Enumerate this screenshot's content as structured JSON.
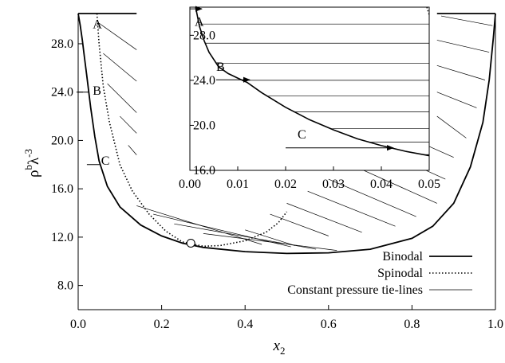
{
  "chart_data": [
    {
      "type": "line",
      "xlabel": "x",
      "xlabel_sub": "2",
      "ylabel_base": "ρ",
      "ylabel_sup1": "b",
      "ylabel_mid": "λ",
      "ylabel_sup2": "-3",
      "xlim": [
        0.0,
        1.0
      ],
      "ylim": [
        6.0,
        30.5
      ],
      "xticks": [
        "0.0",
        "0.2",
        "0.4",
        "0.6",
        "0.8",
        "1.0"
      ],
      "yticks": [
        "8.0",
        "12.0",
        "16.0",
        "20.0",
        "24.0",
        "28.0"
      ],
      "legend_position": "bottom-right",
      "series": [
        {
          "name": "Binodal",
          "style": "solid",
          "left_branch": [
            [
              0.0,
              30.5
            ],
            [
              0.005,
              29.5
            ],
            [
              0.01,
              28.3
            ],
            [
              0.015,
              26.9
            ],
            [
              0.02,
              25.5
            ],
            [
              0.03,
              22.7
            ],
            [
              0.04,
              20.3
            ],
            [
              0.05,
              18.3
            ],
            [
              0.07,
              16.2
            ],
            [
              0.1,
              14.5
            ],
            [
              0.15,
              13.0
            ],
            [
              0.2,
              12.1
            ],
            [
              0.25,
              11.5
            ],
            [
              0.3,
              11.15
            ],
            [
              0.4,
              10.8
            ],
            [
              0.5,
              10.65
            ],
            [
              0.6,
              10.7
            ],
            [
              0.7,
              11.0
            ],
            [
              0.8,
              11.9
            ],
            [
              0.85,
              12.9
            ],
            [
              0.9,
              14.8
            ],
            [
              0.94,
              17.8
            ],
            [
              0.97,
              21.5
            ],
            [
              0.985,
              25.0
            ],
            [
              0.995,
              28.5
            ],
            [
              1.0,
              30.5
            ]
          ],
          "top_segments": [
            [
              [
                0.0,
                30.5
              ],
              [
                0.14,
                30.5
              ]
            ],
            [
              [
                0.86,
                30.5
              ],
              [
                1.0,
                30.5
              ]
            ]
          ]
        },
        {
          "name": "Spinodal",
          "style": "dotted",
          "points": [
            [
              0.045,
              30.5
            ],
            [
              0.05,
              28.0
            ],
            [
              0.06,
              24.5
            ],
            [
              0.075,
              21.5
            ],
            [
              0.1,
              18.0
            ],
            [
              0.13,
              15.8
            ],
            [
              0.17,
              13.9
            ],
            [
              0.21,
              12.5
            ],
            [
              0.25,
              11.6
            ],
            [
              0.3,
              11.25
            ],
            [
              0.34,
              11.3
            ],
            [
              0.4,
              11.7
            ],
            [
              0.45,
              12.4
            ],
            [
              0.48,
              13.2
            ],
            [
              0.5,
              14.1
            ]
          ]
        },
        {
          "name": "Constant pressure tie-lines",
          "style": "thin-solid",
          "lines": [
            [
              [
                0.05,
                29.7
              ],
              [
                0.14,
                27.5
              ]
            ],
            [
              [
                0.06,
                27.2
              ],
              [
                0.14,
                24.9
              ]
            ],
            [
              [
                0.07,
                24.7
              ],
              [
                0.14,
                22.3
              ]
            ],
            [
              [
                0.1,
                22.0
              ],
              [
                0.14,
                20.6
              ]
            ],
            [
              [
                0.12,
                19.6
              ],
              [
                0.14,
                18.8
              ]
            ],
            [
              [
                0.14,
                14.6
              ],
              [
                0.44,
                11.4
              ]
            ],
            [
              [
                0.18,
                13.9
              ],
              [
                0.51,
                11.2
              ]
            ],
            [
              [
                0.23,
                13.1
              ],
              [
                0.57,
                11.0
              ]
            ],
            [
              [
                0.3,
                12.3
              ],
              [
                0.62,
                10.9
              ]
            ],
            [
              [
                0.4,
                12.6
              ],
              [
                0.52,
                11.3
              ]
            ],
            [
              [
                0.46,
                13.9
              ],
              [
                0.6,
                12.1
              ]
            ],
            [
              [
                0.5,
                14.8
              ],
              [
                0.68,
                12.4
              ]
            ],
            [
              [
                0.55,
                15.8
              ],
              [
                0.76,
                12.9
              ]
            ],
            [
              [
                0.6,
                16.8
              ],
              [
                0.81,
                13.7
              ]
            ],
            [
              [
                0.66,
                17.9
              ],
              [
                0.86,
                14.8
              ]
            ],
            [
              [
                0.72,
                19.3
              ],
              [
                0.88,
                16.8
              ]
            ],
            [
              [
                0.77,
                20.6
              ],
              [
                0.9,
                18.6
              ]
            ],
            [
              [
                0.86,
                22.0
              ],
              [
                0.93,
                20.2
              ]
            ],
            [
              [
                0.86,
                24.0
              ],
              [
                0.955,
                22.7
              ]
            ],
            [
              [
                0.86,
                26.2
              ],
              [
                0.975,
                25.0
              ]
            ],
            [
              [
                0.86,
                28.3
              ],
              [
                0.985,
                27.3
              ]
            ],
            [
              [
                0.87,
                30.3
              ],
              [
                0.993,
                29.5
              ]
            ]
          ]
        }
      ],
      "critical_point": [
        0.27,
        11.5
      ],
      "annotations": [
        {
          "text": "A",
          "x": 0.035,
          "y": 29.6,
          "arrow_to": null
        },
        {
          "text": "B",
          "x": 0.035,
          "y": 24.1,
          "arrow_to": [
            0.015,
            24.0
          ]
        },
        {
          "text": "C",
          "x": 0.055,
          "y": 18.3,
          "arrow_to": [
            0.04,
            18.0
          ]
        }
      ]
    },
    {
      "type": "line",
      "inset": true,
      "xlim": [
        0.0,
        0.05
      ],
      "ylim": [
        16.0,
        30.5
      ],
      "xticks": [
        "0.00",
        "0.01",
        "0.02",
        "0.03",
        "0.04",
        "0.05"
      ],
      "yticks": [
        "16.0",
        "20.0",
        "24.0",
        "28.0"
      ],
      "binodal": [
        [
          0.0012,
          30.5
        ],
        [
          0.002,
          28.8
        ],
        [
          0.003,
          27.5
        ],
        [
          0.004,
          26.5
        ],
        [
          0.006,
          25.2
        ],
        [
          0.008,
          24.6
        ],
        [
          0.01,
          24.2
        ],
        [
          0.012,
          23.8
        ],
        [
          0.015,
          22.9
        ],
        [
          0.02,
          21.6
        ],
        [
          0.025,
          20.5
        ],
        [
          0.03,
          19.6
        ],
        [
          0.035,
          18.8
        ],
        [
          0.04,
          18.2
        ],
        [
          0.045,
          17.7
        ],
        [
          0.05,
          17.3
        ]
      ],
      "tie_y": [
        29.0,
        27.3,
        25.5,
        24.0,
        22.6,
        21.2,
        19.7,
        18.5,
        17.4
      ],
      "spinodal_top": [
        [
          0.0495,
          30.5
        ],
        [
          0.05,
          29.8
        ]
      ],
      "annotations": [
        {
          "text": "A",
          "x": 0.001,
          "y": 29.2,
          "arrow_from": [
            0.0,
            30.35
          ],
          "arrow_to": [
            0.0025,
            30.35
          ]
        },
        {
          "text": "B",
          "x": 0.0055,
          "y": 25.2,
          "arrow_from": [
            0.0055,
            24.05
          ],
          "arrow_to": [
            0.0125,
            24.05
          ]
        },
        {
          "text": "C",
          "x": 0.0225,
          "y": 19.2,
          "arrow_from": [
            0.02,
            18.0
          ],
          "arrow_to": [
            0.0425,
            18.0
          ]
        }
      ]
    }
  ]
}
